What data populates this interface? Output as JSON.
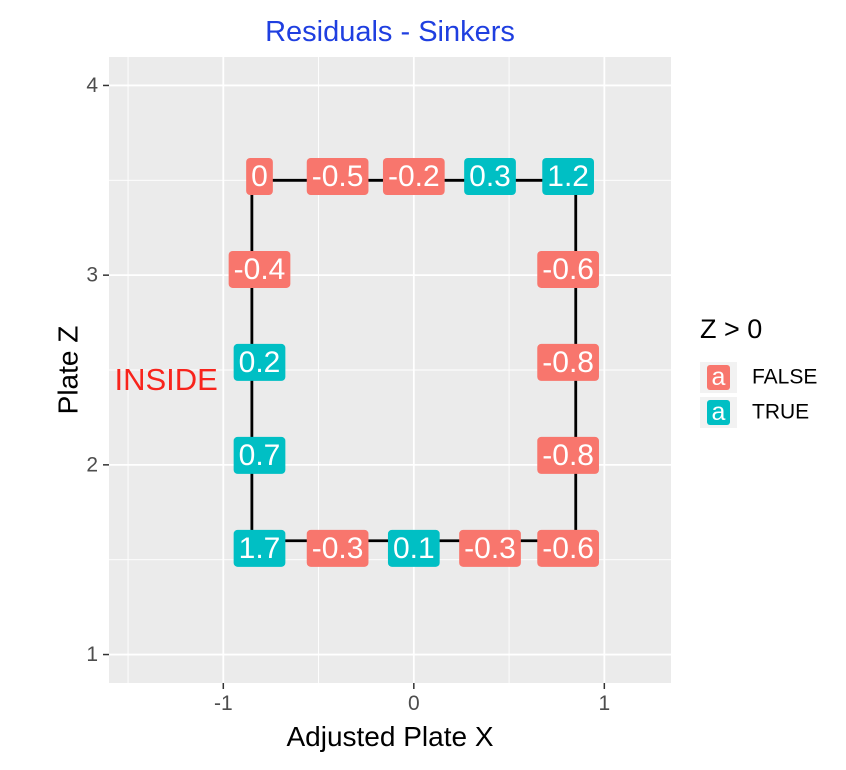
{
  "chart_data": {
    "type": "scatter",
    "title": "Residuals - Sinkers",
    "xlabel": "Adjusted Plate X",
    "ylabel": "Plate Z",
    "xlim": [
      -1.6,
      1.35
    ],
    "ylim": [
      0.85,
      4.15
    ],
    "xticks": [
      -1,
      0,
      1
    ],
    "xtick_labels": [
      "-1",
      "0",
      "1"
    ],
    "yticks": [
      1,
      2,
      3,
      4
    ],
    "ytick_labels": [
      "1",
      "2",
      "3",
      "4"
    ],
    "minor_gridlines": true,
    "legend": {
      "title": "Z > 0",
      "position": "right",
      "key_glyph": "a",
      "entries": [
        {
          "label": "FALSE",
          "color": "#F8766D"
        },
        {
          "label": "TRUE",
          "color": "#00BFC4"
        }
      ]
    },
    "strike_zone": {
      "x": [
        -0.85,
        0.85
      ],
      "z": [
        1.6,
        3.5
      ],
      "color": "#000000"
    },
    "annotation": {
      "text": "INSIDE",
      "x": -1.3,
      "z": 2.45,
      "color": "#F8241C"
    },
    "points": [
      {
        "x": -0.81,
        "z": 3.52,
        "label": "0",
        "positive": false
      },
      {
        "x": -0.4,
        "z": 3.52,
        "label": "-0.5",
        "positive": false
      },
      {
        "x": 0.0,
        "z": 3.52,
        "label": "-0.2",
        "positive": false
      },
      {
        "x": 0.4,
        "z": 3.52,
        "label": "0.3",
        "positive": true
      },
      {
        "x": 0.81,
        "z": 3.52,
        "label": "1.2",
        "positive": true
      },
      {
        "x": -0.81,
        "z": 3.03,
        "label": "-0.4",
        "positive": false
      },
      {
        "x": 0.81,
        "z": 3.03,
        "label": "-0.6",
        "positive": false
      },
      {
        "x": -0.81,
        "z": 2.54,
        "label": "0.2",
        "positive": true
      },
      {
        "x": 0.81,
        "z": 2.54,
        "label": "-0.8",
        "positive": false
      },
      {
        "x": -0.81,
        "z": 2.05,
        "label": "0.7",
        "positive": true
      },
      {
        "x": 0.81,
        "z": 2.05,
        "label": "-0.8",
        "positive": false
      },
      {
        "x": -0.81,
        "z": 1.56,
        "label": "1.7",
        "positive": true
      },
      {
        "x": -0.4,
        "z": 1.56,
        "label": "-0.3",
        "positive": false
      },
      {
        "x": 0.0,
        "z": 1.56,
        "label": "0.1",
        "positive": true
      },
      {
        "x": 0.4,
        "z": 1.56,
        "label": "-0.3",
        "positive": false
      },
      {
        "x": 0.81,
        "z": 1.56,
        "label": "-0.6",
        "positive": false
      }
    ]
  },
  "colors": {
    "title": "#1F3FE0",
    "panel_bg": "#EBEBEB",
    "grid": "#FFFFFF",
    "false": "#F8766D",
    "true": "#00BFC4"
  }
}
